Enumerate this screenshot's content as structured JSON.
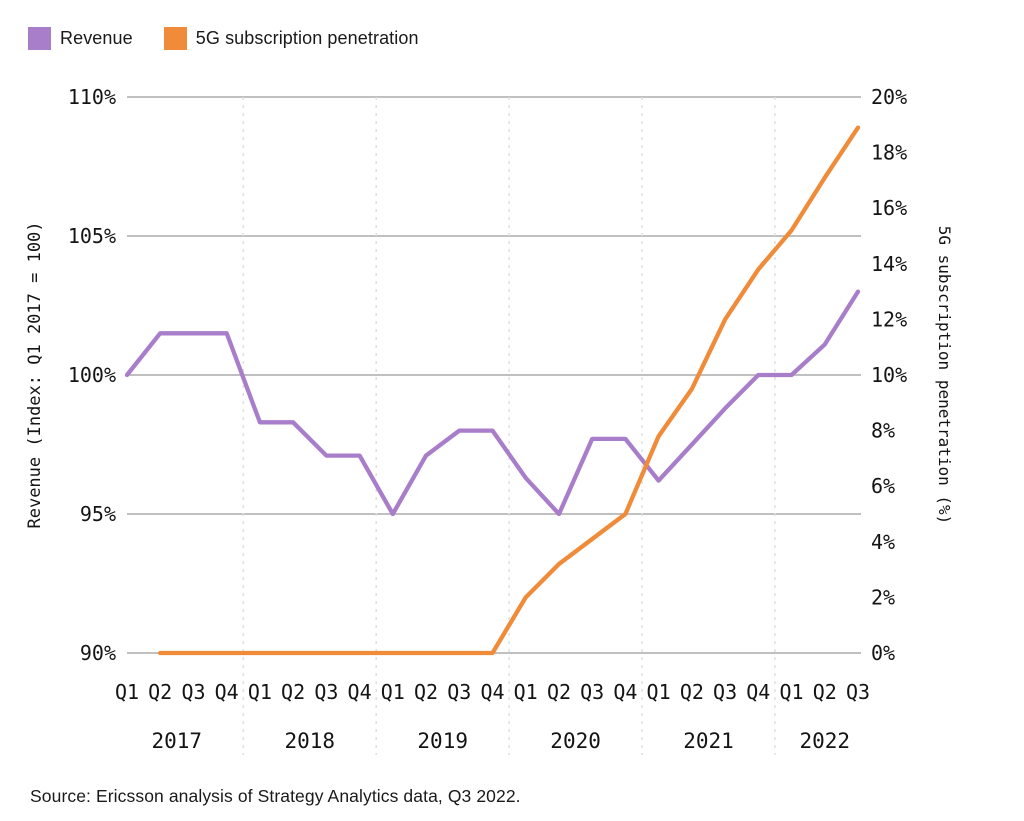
{
  "legend": {
    "items": [
      {
        "label": "Revenue",
        "color": "#a87ecb"
      },
      {
        "label": "5G subscription penetration",
        "color": "#ef8b39"
      }
    ]
  },
  "chart_data": {
    "type": "line",
    "x_axis": {
      "quarter_labels": [
        "Q1",
        "Q2",
        "Q3",
        "Q4",
        "Q1",
        "Q2",
        "Q3",
        "Q4",
        "Q1",
        "Q2",
        "Q3",
        "Q4",
        "Q1",
        "Q2",
        "Q3",
        "Q4",
        "Q1",
        "Q2",
        "Q3",
        "Q4",
        "Q1",
        "Q2",
        "Q3"
      ],
      "year_groups": [
        {
          "label": "2017",
          "count": 4
        },
        {
          "label": "2018",
          "count": 4
        },
        {
          "label": "2019",
          "count": 4
        },
        {
          "label": "2020",
          "count": 4
        },
        {
          "label": "2021",
          "count": 4
        },
        {
          "label": "2022",
          "count": 3
        }
      ]
    },
    "left_axis": {
      "title": "Revenue (Index: Q1 2017 = 100)",
      "min": 90,
      "max": 110,
      "tick_values": [
        110,
        105,
        100,
        95,
        90
      ],
      "tick_labels": [
        "110%",
        "105%",
        "100%",
        "95%",
        "90%"
      ]
    },
    "right_axis": {
      "title": "5G subscription penetration (%)",
      "min": 0,
      "max": 20,
      "tick_values": [
        20,
        18,
        16,
        14,
        12,
        10,
        8,
        6,
        4,
        2,
        0
      ],
      "tick_labels": [
        "20%",
        "18%",
        "16%",
        "14%",
        "12%",
        "10%",
        "8%",
        "6%",
        "4%",
        "2%",
        "0%"
      ]
    },
    "series": [
      {
        "name": "Revenue",
        "axis": "left",
        "color": "#a87ecb",
        "values": [
          100,
          101.5,
          101.5,
          101.5,
          98.3,
          98.3,
          97.1,
          97.1,
          95,
          97.1,
          98,
          98,
          96.3,
          95,
          97.7,
          97.7,
          96.2,
          97.5,
          98.8,
          100,
          100,
          101.1,
          103
        ]
      },
      {
        "name": "5G subscription penetration",
        "axis": "right",
        "color": "#ef8b39",
        "values": [
          null,
          0,
          0,
          0,
          0,
          0,
          0,
          0,
          0,
          0,
          0,
          0,
          2,
          3.2,
          4.1,
          5,
          7.8,
          9.5,
          12,
          13.8,
          15.2,
          17.1,
          18.9
        ]
      }
    ],
    "grid": {
      "horizontal": "solid",
      "year_boundaries": "dashed"
    }
  },
  "source_note": "Source: Ericsson analysis of Strategy Analytics data, Q3 2022."
}
